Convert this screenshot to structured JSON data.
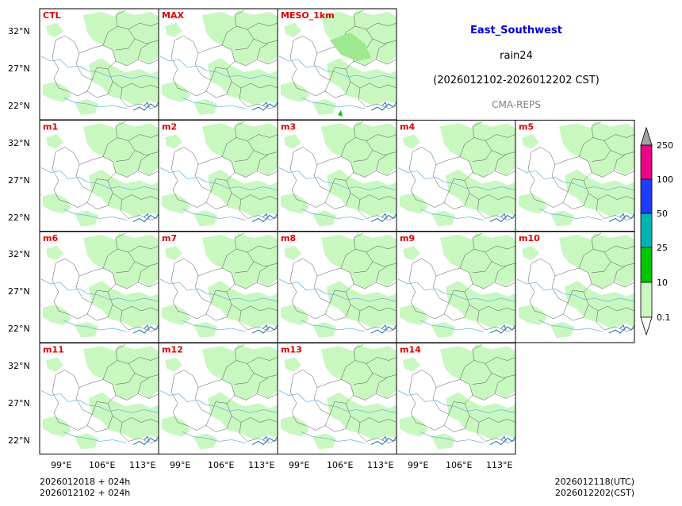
{
  "title": {
    "region": "East_Southwest",
    "variable": "rain24",
    "period": "(2026012102-2026012202 CST)",
    "source": "CMA-REPS"
  },
  "panels": [
    {
      "label": "CTL"
    },
    {
      "label": "MAX"
    },
    {
      "label": "MESO_1km"
    },
    {
      "label": "m1"
    },
    {
      "label": "m2"
    },
    {
      "label": "m3"
    },
    {
      "label": "m4"
    },
    {
      "label": "m5"
    },
    {
      "label": "m6"
    },
    {
      "label": "m7"
    },
    {
      "label": "m8"
    },
    {
      "label": "m9"
    },
    {
      "label": "m10"
    },
    {
      "label": "m11"
    },
    {
      "label": "m12"
    },
    {
      "label": "m13"
    },
    {
      "label": "m14"
    }
  ],
  "axes": {
    "lat_ticks": [
      "32°N",
      "27°N",
      "22°N"
    ],
    "lon_ticks": [
      "99°E",
      "106°E",
      "113°E"
    ]
  },
  "colorbar": {
    "labels": [
      "250",
      "100",
      "50",
      "25",
      "10",
      "0.1"
    ],
    "colors": [
      "#a0a0a0",
      "#ee0088",
      "#1e3cff",
      "#00b4b4",
      "#00c800",
      "#c8f7c0",
      "#ffffff"
    ]
  },
  "footer": {
    "init_utc": "2026012018  +  024h",
    "init_cst": "2026012102  +  024h",
    "valid_utc": "2026012118(UTC)",
    "valid_cst": "2026012202(CST)"
  },
  "colors": {
    "label": "#e00000",
    "region_title": "#0000dd",
    "rain_light": "#c8f7c0"
  }
}
